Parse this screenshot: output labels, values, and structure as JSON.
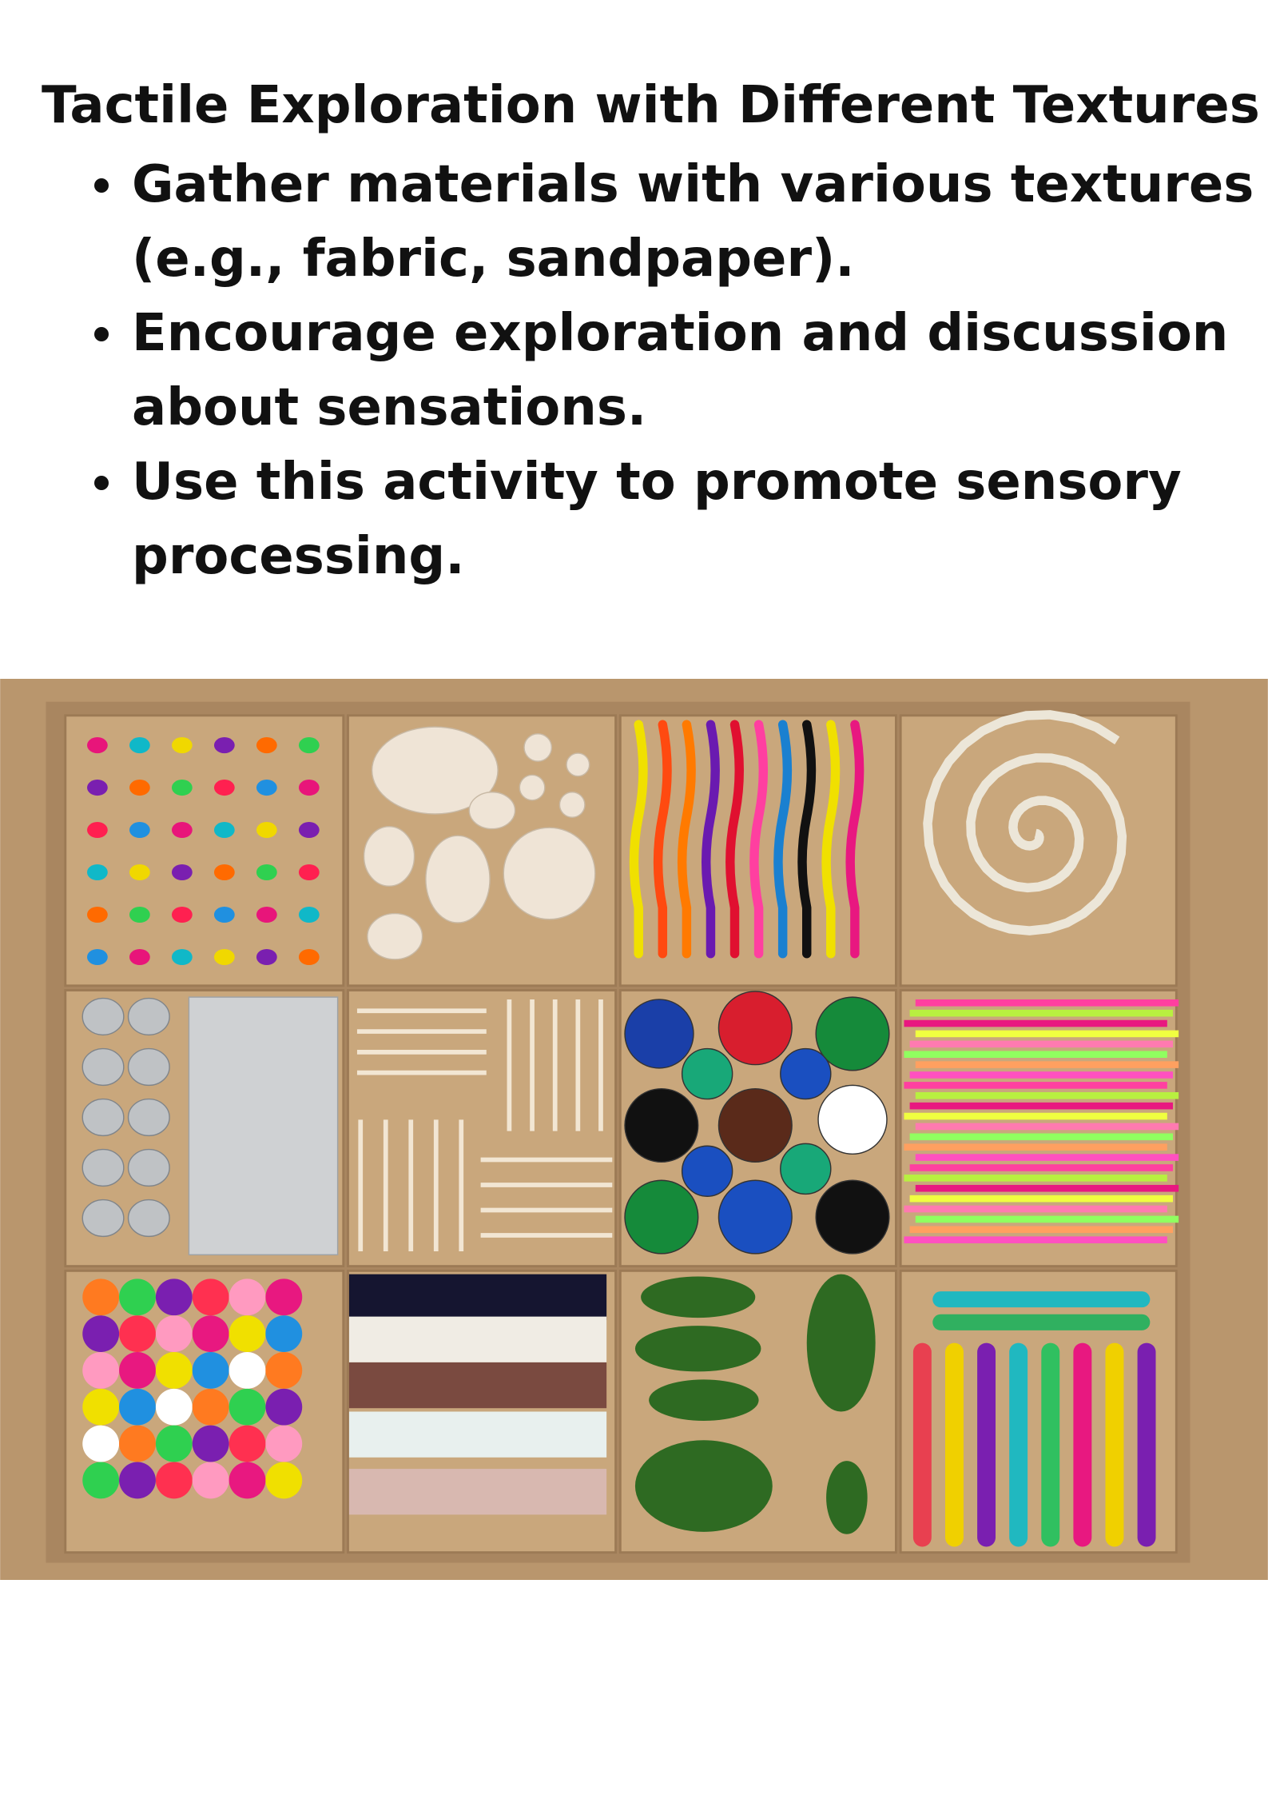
{
  "header": {
    "title": "Tactile Exploration with Different Textures"
  },
  "bullets": [
    "Gather materials with various textures (e.g., fabric, sandpaper).",
    "Encourage exploration and discussion about sensations.",
    "Use this activity to promote sensory processing."
  ]
}
